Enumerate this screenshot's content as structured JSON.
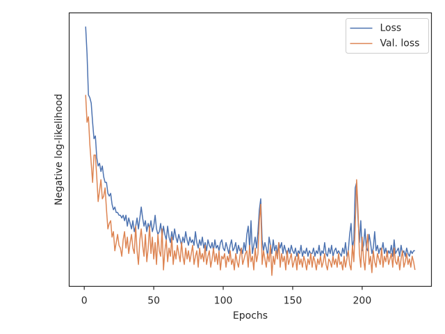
{
  "chart_data": {
    "type": "line",
    "xlabel": "Epochs",
    "ylabel": "Negative log-likelihood",
    "xlim": [
      -10.85,
      249.85
    ],
    "ylim": [
      0,
      100
    ],
    "xticks": [
      0,
      50,
      100,
      150,
      200
    ],
    "legend": "upper right",
    "x": [
      1,
      2,
      3,
      4,
      5,
      6,
      7,
      8,
      9,
      10,
      11,
      12,
      13,
      14,
      15,
      16,
      17,
      18,
      19,
      20,
      21,
      22,
      23,
      24,
      25,
      26,
      27,
      28,
      29,
      30,
      31,
      32,
      33,
      34,
      35,
      36,
      37,
      38,
      39,
      40,
      41,
      42,
      43,
      44,
      45,
      46,
      47,
      48,
      49,
      50,
      51,
      52,
      53,
      54,
      55,
      56,
      57,
      58,
      59,
      60,
      61,
      62,
      63,
      64,
      65,
      66,
      67,
      68,
      69,
      70,
      71,
      72,
      73,
      74,
      75,
      76,
      77,
      78,
      79,
      80,
      81,
      82,
      83,
      84,
      85,
      86,
      87,
      88,
      89,
      90,
      91,
      92,
      93,
      94,
      95,
      96,
      97,
      98,
      99,
      100,
      101,
      102,
      103,
      104,
      105,
      106,
      107,
      108,
      109,
      110,
      111,
      112,
      113,
      114,
      115,
      116,
      117,
      118,
      119,
      120,
      121,
      122,
      123,
      124,
      125,
      126,
      127,
      128,
      129,
      130,
      131,
      132,
      133,
      134,
      135,
      136,
      137,
      138,
      139,
      140,
      141,
      142,
      143,
      144,
      145,
      146,
      147,
      148,
      149,
      150,
      151,
      152,
      153,
      154,
      155,
      156,
      157,
      158,
      159,
      160,
      161,
      162,
      163,
      164,
      165,
      166,
      167,
      168,
      169,
      170,
      171,
      172,
      173,
      174,
      175,
      176,
      177,
      178,
      179,
      180,
      181,
      182,
      183,
      184,
      185,
      186,
      187,
      188,
      189,
      190,
      191,
      192,
      193,
      194,
      195,
      196,
      197,
      198,
      199,
      200,
      201,
      202,
      203,
      204,
      205,
      206,
      207,
      208,
      209,
      210,
      211,
      212,
      213,
      214,
      215,
      216,
      217,
      218,
      219,
      220,
      221,
      222,
      223,
      224,
      225,
      226,
      227,
      228,
      229,
      230,
      231,
      232,
      233,
      234,
      235,
      236,
      237,
      238
    ],
    "series": [
      {
        "name": "Loss",
        "color": "#4c72b0",
        "values": [
          95,
          85,
          70,
          69,
          67,
          60,
          54,
          55,
          47,
          44,
          45,
          42,
          44,
          40,
          38,
          38,
          34,
          33,
          34,
          30,
          28,
          29,
          27,
          27,
          26,
          26,
          25,
          26,
          24,
          26,
          22,
          25,
          23,
          21,
          24,
          20,
          22,
          25,
          21,
          25,
          29,
          25,
          22,
          24,
          20,
          23,
          21,
          24,
          20,
          22,
          26,
          21,
          19,
          20,
          23,
          18,
          22,
          19,
          17,
          22,
          18,
          16,
          20,
          17,
          21,
          18,
          16,
          19,
          17,
          15,
          18,
          16,
          20,
          17,
          15,
          18,
          16,
          17,
          15,
          20,
          16,
          14,
          17,
          15,
          18,
          14,
          16,
          13,
          17,
          15,
          14,
          16,
          13,
          17,
          14,
          15,
          13,
          16,
          17,
          14,
          13,
          16,
          14,
          12,
          15,
          17,
          13,
          14,
          16,
          12,
          15,
          13,
          14,
          12,
          16,
          13,
          19,
          22,
          14,
          24,
          12,
          15,
          18,
          14,
          20,
          28,
          32,
          17,
          13,
          16,
          14,
          11,
          18,
          15,
          12,
          17,
          13,
          15,
          12,
          16,
          14,
          16,
          12,
          15,
          13,
          11,
          14,
          12,
          15,
          13,
          12,
          14,
          11,
          13,
          12,
          15,
          11,
          13,
          12,
          14,
          11,
          13,
          12,
          12,
          14,
          11,
          13,
          12,
          15,
          11,
          13,
          12,
          16,
          12,
          11,
          14,
          12,
          15,
          11,
          13,
          14,
          12,
          13,
          12,
          11,
          14,
          12,
          16,
          11,
          13,
          19,
          23,
          14,
          17,
          36,
          38,
          25,
          16,
          24,
          13,
          15,
          21,
          14,
          13,
          19,
          16,
          12,
          14,
          20,
          13,
          15,
          12,
          14,
          13,
          16,
          12,
          14,
          11,
          13,
          12,
          15,
          11,
          17,
          12,
          13,
          14,
          11,
          15,
          12,
          13,
          11,
          14,
          12,
          11,
          13,
          12,
          13,
          13
        ]
      },
      {
        "name": "Val. loss",
        "color": "#dd8452",
        "values": [
          70,
          60,
          62,
          52,
          45,
          38,
          48,
          48,
          40,
          31,
          35,
          39,
          32,
          33,
          36,
          28,
          21,
          23,
          24,
          18,
          20,
          13,
          16,
          19,
          15,
          14,
          11,
          17,
          20,
          14,
          18,
          12,
          16,
          19,
          14,
          12,
          22,
          13,
          8,
          17,
          21,
          15,
          11,
          19,
          9,
          14,
          22,
          12,
          18,
          10,
          16,
          8,
          19,
          13,
          11,
          21,
          6,
          13,
          17,
          9,
          14,
          11,
          18,
          8,
          13,
          10,
          15,
          12,
          9,
          16,
          11,
          8,
          14,
          10,
          13,
          9,
          12,
          15,
          8,
          11,
          13,
          7,
          14,
          10,
          12,
          9,
          15,
          8,
          11,
          13,
          7,
          10,
          14,
          9,
          12,
          8,
          13,
          6,
          11,
          10,
          12,
          7,
          11,
          9,
          13,
          8,
          10,
          6,
          12,
          9,
          7,
          11,
          14,
          8,
          10,
          12,
          13,
          7,
          15,
          9,
          11,
          6,
          14,
          9,
          12,
          24,
          30,
          8,
          13,
          10,
          7,
          12,
          9,
          15,
          4,
          11,
          8,
          13,
          10,
          16,
          7,
          12,
          9,
          11,
          6,
          13,
          8,
          10,
          12,
          7,
          9,
          11,
          6,
          12,
          8,
          10,
          7,
          11,
          9,
          6,
          10,
          8,
          12,
          7,
          11,
          9,
          6,
          10,
          8,
          11,
          7,
          9,
          12,
          8,
          6,
          10,
          9,
          7,
          11,
          8,
          10,
          7,
          12,
          8,
          9,
          6,
          11,
          7,
          10,
          13,
          8,
          6,
          15,
          9,
          22,
          39,
          28,
          12,
          7,
          18,
          10,
          6,
          14,
          19,
          8,
          11,
          5,
          13,
          9,
          7,
          12,
          10,
          8,
          14,
          7,
          11,
          9,
          13,
          8,
          10,
          12,
          7,
          14,
          9,
          8,
          11,
          6,
          10,
          13,
          7,
          9,
          12,
          8,
          10,
          7,
          11,
          9,
          6
        ]
      }
    ]
  }
}
